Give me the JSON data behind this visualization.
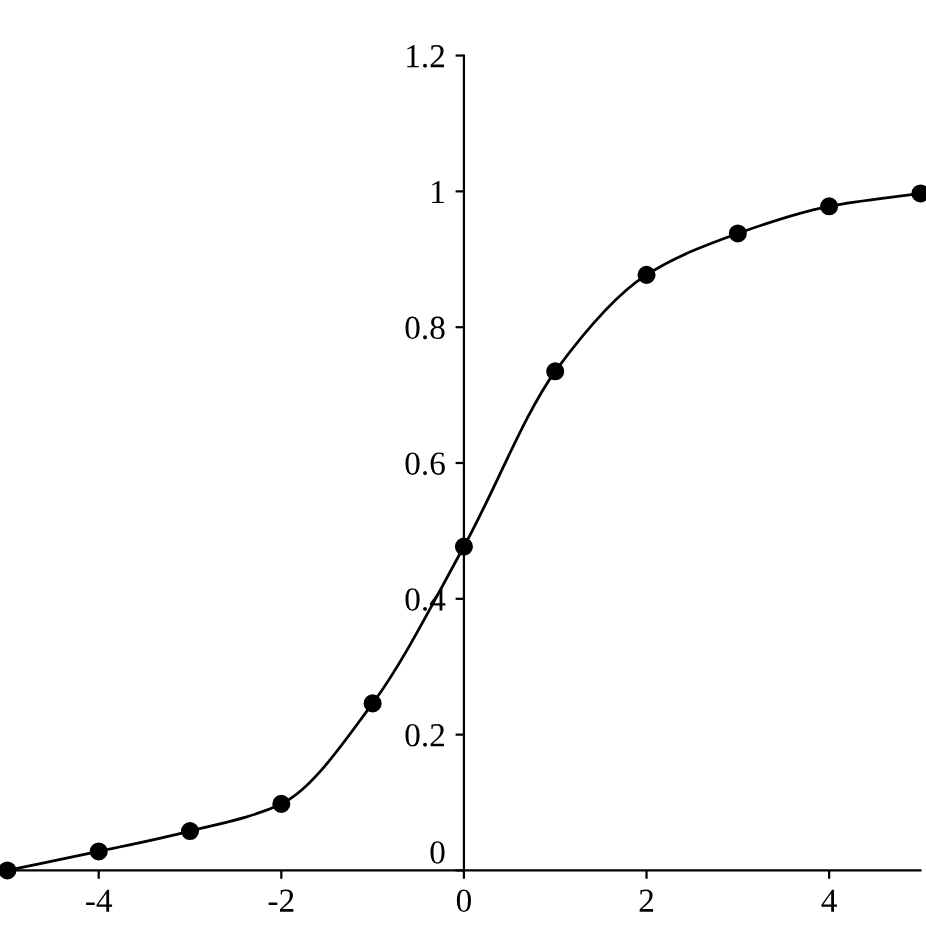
{
  "chart_data": {
    "type": "line",
    "x": [
      -5,
      -4,
      -3,
      -2,
      -1,
      0,
      1,
      2,
      3,
      4,
      5
    ],
    "series": [
      {
        "color": "#000000",
        "values": [
          0.0,
          0.028,
          0.058,
          0.098,
          0.246,
          0.477,
          0.735,
          0.877,
          0.938,
          0.978,
          0.997
        ]
      }
    ],
    "xlim": [
      -5,
      5
    ],
    "ylim": [
      0,
      1.2
    ],
    "xticks": [
      -4,
      -2,
      0,
      2,
      4
    ],
    "yticks": [
      0,
      0.2,
      0.4,
      0.6,
      0.8,
      1,
      1.2
    ],
    "marker": "circle",
    "line_style": "solid",
    "grid": false,
    "legend": false
  }
}
